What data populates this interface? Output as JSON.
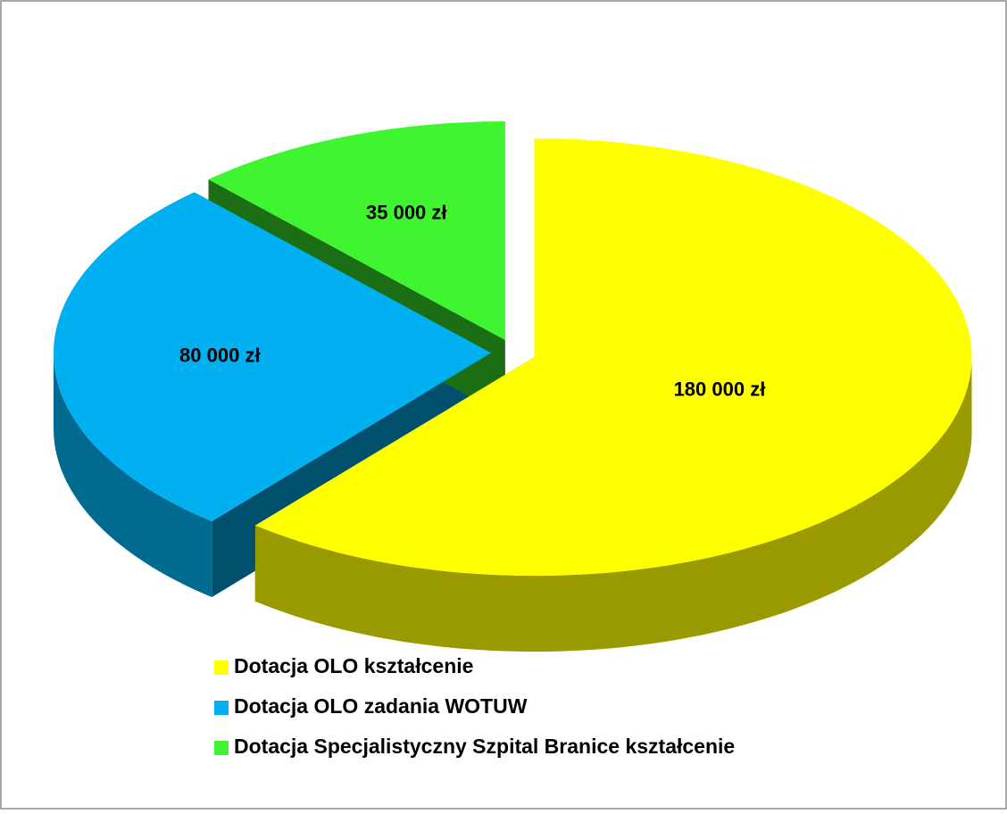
{
  "chart_data": {
    "type": "pie",
    "categories": [
      "Dotacja OLO kształcenie",
      "Dotacja OLO zadania WOTUW",
      "Dotacja Specjalistyczny Szpital Branice kształcenie"
    ],
    "values": [
      180000,
      80000,
      35000
    ],
    "value_labels": [
      "180 000 zł",
      "80 000 zł",
      "35 000 zł"
    ],
    "colors": [
      "#ffff00",
      "#00b0f0",
      "#3ef52f"
    ],
    "legend": "bottom"
  }
}
